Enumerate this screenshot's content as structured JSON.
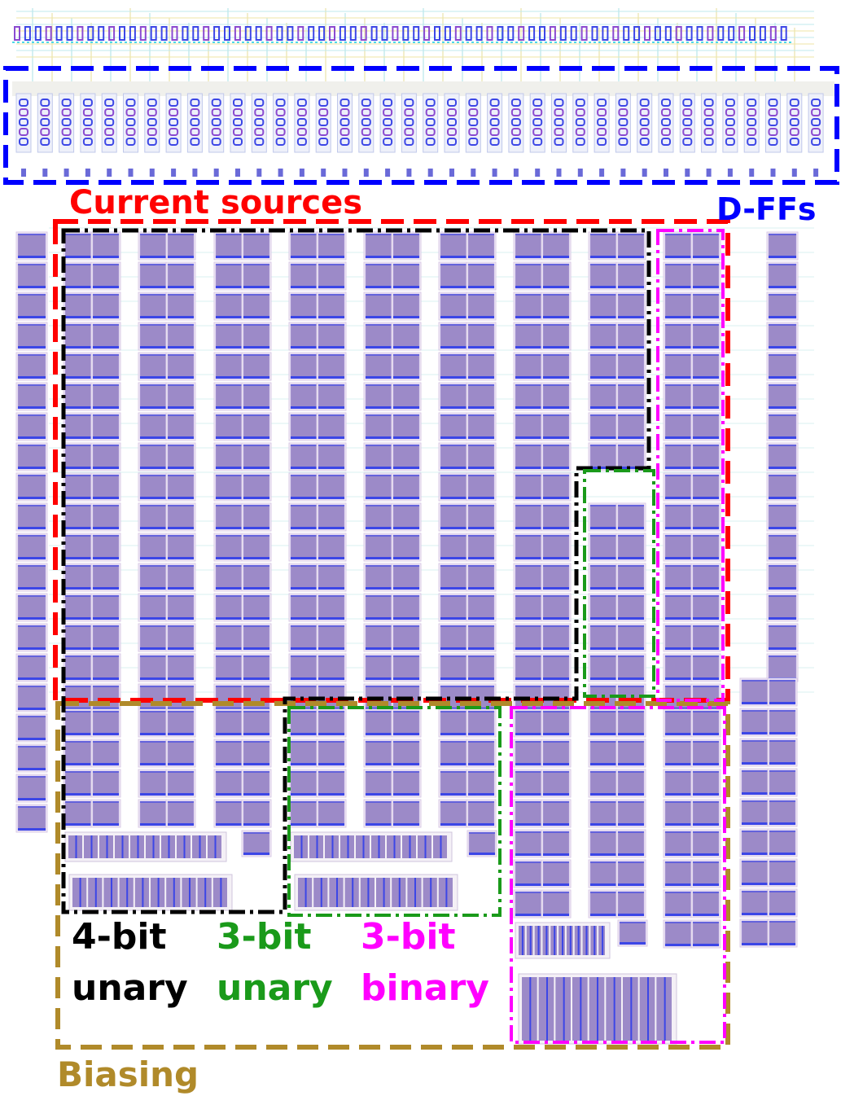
{
  "labels": {
    "current_sources": "Current sources",
    "dffs": "D-FFs",
    "four_bit_1": "4-bit",
    "four_bit_2": "unary",
    "three_bit_unary_1": "3-bit",
    "three_bit_unary_2": "unary",
    "three_bit_binary_1": "3-bit",
    "three_bit_binary_2": "binary",
    "biasing": "Biasing"
  },
  "colors": {
    "current_sources": "#ff0000",
    "dffs": "#0000ff",
    "four_bit_unary": "#000000",
    "three_bit_unary": "#1a9a1a",
    "three_bit_binary": "#ff00ff",
    "biasing": "#b08a2a",
    "cell_fill": "#9c8ac8",
    "cell_edge": "#3c46e6"
  }
}
